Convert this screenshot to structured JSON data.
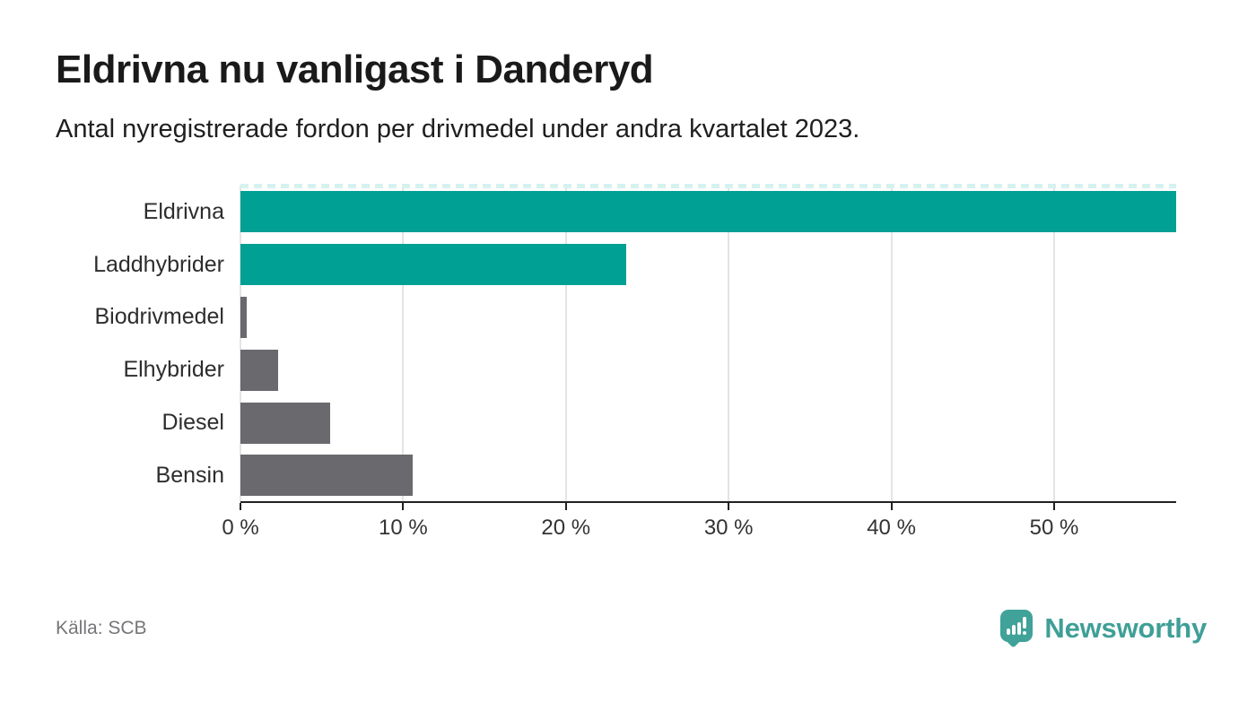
{
  "header": {
    "title": "Eldrivna nu vanligast i Danderyd",
    "subtitle": "Antal nyregistrerade fordon per drivmedel under andra kvartalet 2023."
  },
  "chart_data": {
    "type": "bar",
    "orientation": "horizontal",
    "title": "Eldrivna nu vanligast i Danderyd",
    "subtitle": "Antal nyregistrerade fordon per drivmedel under andra kvartalet 2023.",
    "categories": [
      "Eldrivna",
      "Laddhybrider",
      "Biodrivmedel",
      "Elhybrider",
      "Diesel",
      "Bensin"
    ],
    "values": [
      57.5,
      23.7,
      0.4,
      2.3,
      5.5,
      10.6
    ],
    "unit": "%",
    "xlim": [
      0,
      57.5
    ],
    "xticks": [
      0,
      10,
      20,
      30,
      40,
      50
    ],
    "xtick_suffix": " %",
    "grid": "vertical",
    "legend": "none",
    "bar_colors": [
      "#00a094",
      "#00a094",
      "#69696e",
      "#69696e",
      "#69696e",
      "#69696e"
    ],
    "notes": "topmost bar spans full plot width; dashed light-teal line across plot top"
  },
  "footer": {
    "source": "Källa: SCB",
    "brand": "Newsworthy"
  },
  "colors": {
    "electric_teal": "#00a094",
    "other_gray": "#69696e",
    "brand_teal": "#40a299",
    "axis": "#212121",
    "gridline": "#e4e4e4",
    "dash_top": "#d5f2f0",
    "text_dark": "#1a1a1a",
    "text_muted": "#76767a"
  },
  "icons": {
    "logo": "newsworthy-pin-bar-chart-icon"
  }
}
